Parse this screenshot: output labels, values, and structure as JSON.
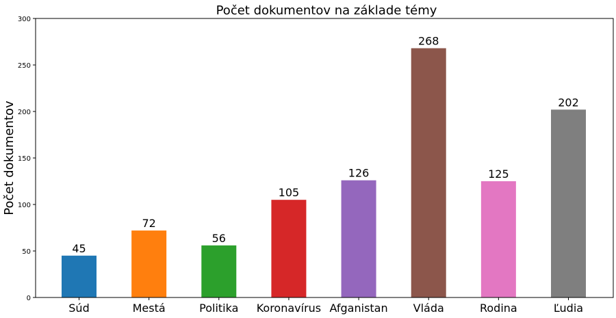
{
  "chart_data": {
    "type": "bar",
    "title": "Počet dokumentov na základe témy",
    "xlabel": "",
    "ylabel": "Počet dokumentov",
    "categories": [
      "Súd",
      "Mestá",
      "Politika",
      "Koronavírus",
      "Afganistan",
      "Vláda",
      "Rodina",
      "Ľudia"
    ],
    "values": [
      45,
      72,
      56,
      105,
      126,
      268,
      125,
      202
    ],
    "colors": [
      "#1f77b4",
      "#ff7f0e",
      "#2ca02c",
      "#d62728",
      "#9467bd",
      "#8c564b",
      "#e377c2",
      "#7f7f7f"
    ],
    "ylim": [
      0,
      300
    ],
    "yticks": [
      0,
      50,
      100,
      150,
      200,
      250,
      300
    ],
    "grid": false,
    "data_labels": true
  }
}
